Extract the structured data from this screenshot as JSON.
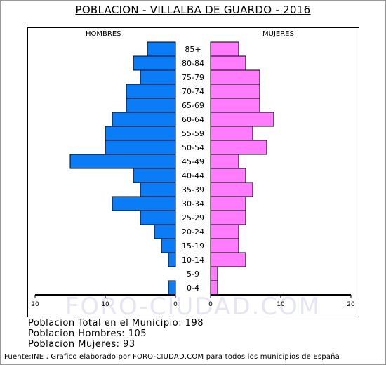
{
  "title": "POBLACION - VILLALBA DE GUARDO - 2016",
  "labels": {
    "men": "HOMBRES",
    "women": "MUJERES"
  },
  "watermark": "FORO-CIUDAD.COM",
  "stats": {
    "total": "Poblacion Total en el Municipio: 198",
    "men": "Poblacion Hombres: 105",
    "women": "Poblacion Mujeres: 93"
  },
  "source": "Fuente:INE , Grafico elaborado por FORO-CIUDAD.COM para todos los municipios de España",
  "colors": {
    "men": "#0a7cf5",
    "women": "#ff7cff"
  },
  "chart_data": {
    "type": "bar",
    "orientation": "horizontal",
    "categories": [
      "85+",
      "80-84",
      "75-79",
      "70-74",
      "65-69",
      "60-64",
      "55-59",
      "50-54",
      "45-49",
      "40-44",
      "35-39",
      "30-34",
      "25-29",
      "20-24",
      "15-19",
      "10-14",
      "5-9",
      "0-4"
    ],
    "series": [
      {
        "name": "HOMBRES",
        "values": [
          4,
          6,
          5,
          7,
          7,
          9,
          10,
          10,
          15,
          6,
          5,
          9,
          5,
          3,
          2,
          1,
          0,
          1
        ]
      },
      {
        "name": "MUJERES",
        "values": [
          4,
          5,
          7,
          7,
          7,
          9,
          6,
          8,
          4,
          5,
          6,
          5,
          5,
          4,
          4,
          5,
          1,
          1
        ]
      }
    ],
    "x_ticks_left": [
      "20",
      "10",
      "0"
    ],
    "x_ticks_right": [
      "0",
      "10",
      "20"
    ],
    "xlim": [
      0,
      20
    ]
  }
}
